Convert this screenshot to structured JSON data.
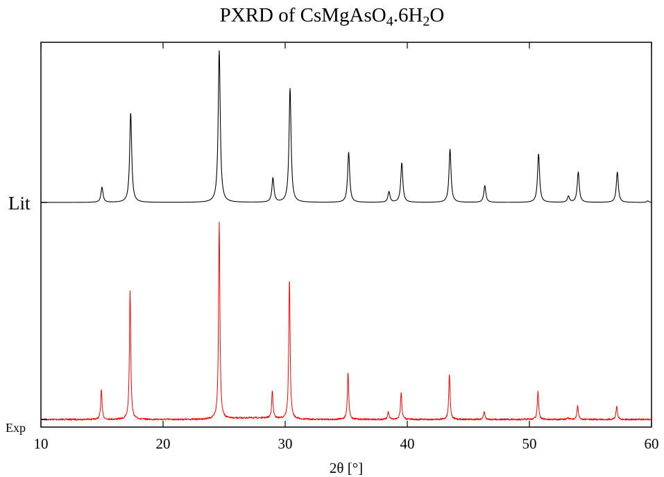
{
  "title": {
    "prefix": "PXRD of CsMgAsO",
    "sub1": "4",
    "mid": ".6H",
    "sub2": "2",
    "suffix": "O"
  },
  "chart_data": {
    "type": "line",
    "title": "PXRD of CsMgAsO4.6H2O",
    "xlabel": "2θ [°]",
    "ylabel": "",
    "xlim": [
      10,
      60
    ],
    "x_ticks": [
      10,
      20,
      30,
      40,
      50,
      60
    ],
    "grid": false,
    "legend": "none",
    "series": [
      {
        "name": "Lit",
        "color": "#000000",
        "baseline_label": "Lit",
        "peaks": [
          {
            "x": 15.0,
            "y": 0.1
          },
          {
            "x": 17.35,
            "y": 0.59
          },
          {
            "x": 24.6,
            "y": 1.0
          },
          {
            "x": 29.0,
            "y": 0.16
          },
          {
            "x": 30.4,
            "y": 0.75
          },
          {
            "x": 35.2,
            "y": 0.33
          },
          {
            "x": 38.5,
            "y": 0.07
          },
          {
            "x": 39.55,
            "y": 0.26
          },
          {
            "x": 43.5,
            "y": 0.35
          },
          {
            "x": 46.35,
            "y": 0.11
          },
          {
            "x": 50.75,
            "y": 0.32
          },
          {
            "x": 53.2,
            "y": 0.04
          },
          {
            "x": 54.0,
            "y": 0.2
          },
          {
            "x": 57.2,
            "y": 0.2
          },
          {
            "x": 59.7,
            "y": 0.01
          }
        ]
      },
      {
        "name": "Exp",
        "color": "#ff0000",
        "baseline_label": "Exp",
        "peaks": [
          {
            "x": 14.95,
            "y": 0.15
          },
          {
            "x": 17.3,
            "y": 0.65
          },
          {
            "x": 24.6,
            "y": 1.0
          },
          {
            "x": 28.95,
            "y": 0.14
          },
          {
            "x": 30.35,
            "y": 0.71
          },
          {
            "x": 35.15,
            "y": 0.24
          },
          {
            "x": 38.45,
            "y": 0.04
          },
          {
            "x": 39.5,
            "y": 0.14
          },
          {
            "x": 43.45,
            "y": 0.23
          },
          {
            "x": 46.3,
            "y": 0.04
          },
          {
            "x": 50.7,
            "y": 0.14
          },
          {
            "x": 53.15,
            "y": 0.01
          },
          {
            "x": 53.95,
            "y": 0.07
          },
          {
            "x": 57.15,
            "y": 0.07
          }
        ]
      }
    ]
  }
}
